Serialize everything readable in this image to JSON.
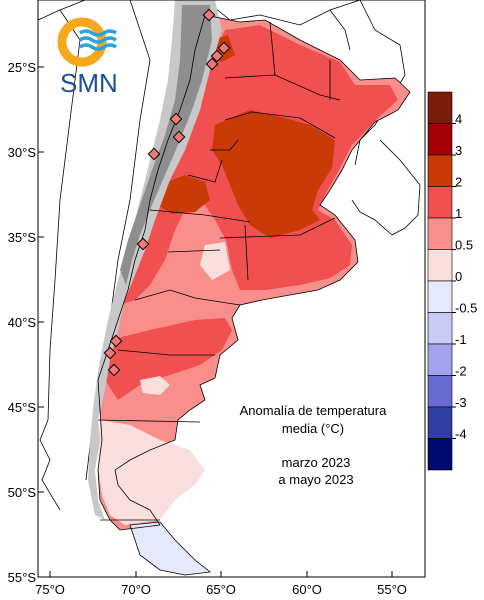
{
  "logo": {
    "text": "SMN",
    "ring_color": "#f5a81c",
    "wave_color": "#29a3dc",
    "text_color": "#1f4e9a"
  },
  "axes": {
    "lat_labels": [
      "25°S",
      "30°S",
      "35°S",
      "40°S",
      "45°S",
      "50°S",
      "55°S"
    ],
    "lon_labels": [
      "75°O",
      "70°O",
      "65°O",
      "60°O",
      "55°O"
    ]
  },
  "colorbar": {
    "labels": [
      "4",
      "3",
      "2",
      "1",
      "0.5",
      "0",
      "-0.5",
      "-1",
      "-2",
      "-3",
      "-4"
    ],
    "colors": [
      "#7a1e0c",
      "#a3000a",
      "#c93a06",
      "#f0504f",
      "#f98f8d",
      "#fbdfdf",
      "#e6e8fb",
      "#c9cbf6",
      "#a2a2ef",
      "#6a6ad3",
      "#2e3ea3",
      "#000a72"
    ]
  },
  "legend": {
    "line1": "Anomalía de temperatura",
    "line2": "media (°C)",
    "line3": "marzo 2023",
    "line4": "a mayo 2023"
  },
  "map": {
    "region": "Argentina",
    "variable": "temperature anomaly",
    "colors": {
      "c_0_05": "#fbdfdf",
      "c_05_1": "#f98f8d",
      "c_1_2": "#f0504f",
      "c_2_3": "#c93a06",
      "c_neg": "#e6e8fb",
      "mountains_light": "#c8c8c8",
      "mountains_dark": "#8e8e8e",
      "marker": "#f07a7a"
    }
  }
}
